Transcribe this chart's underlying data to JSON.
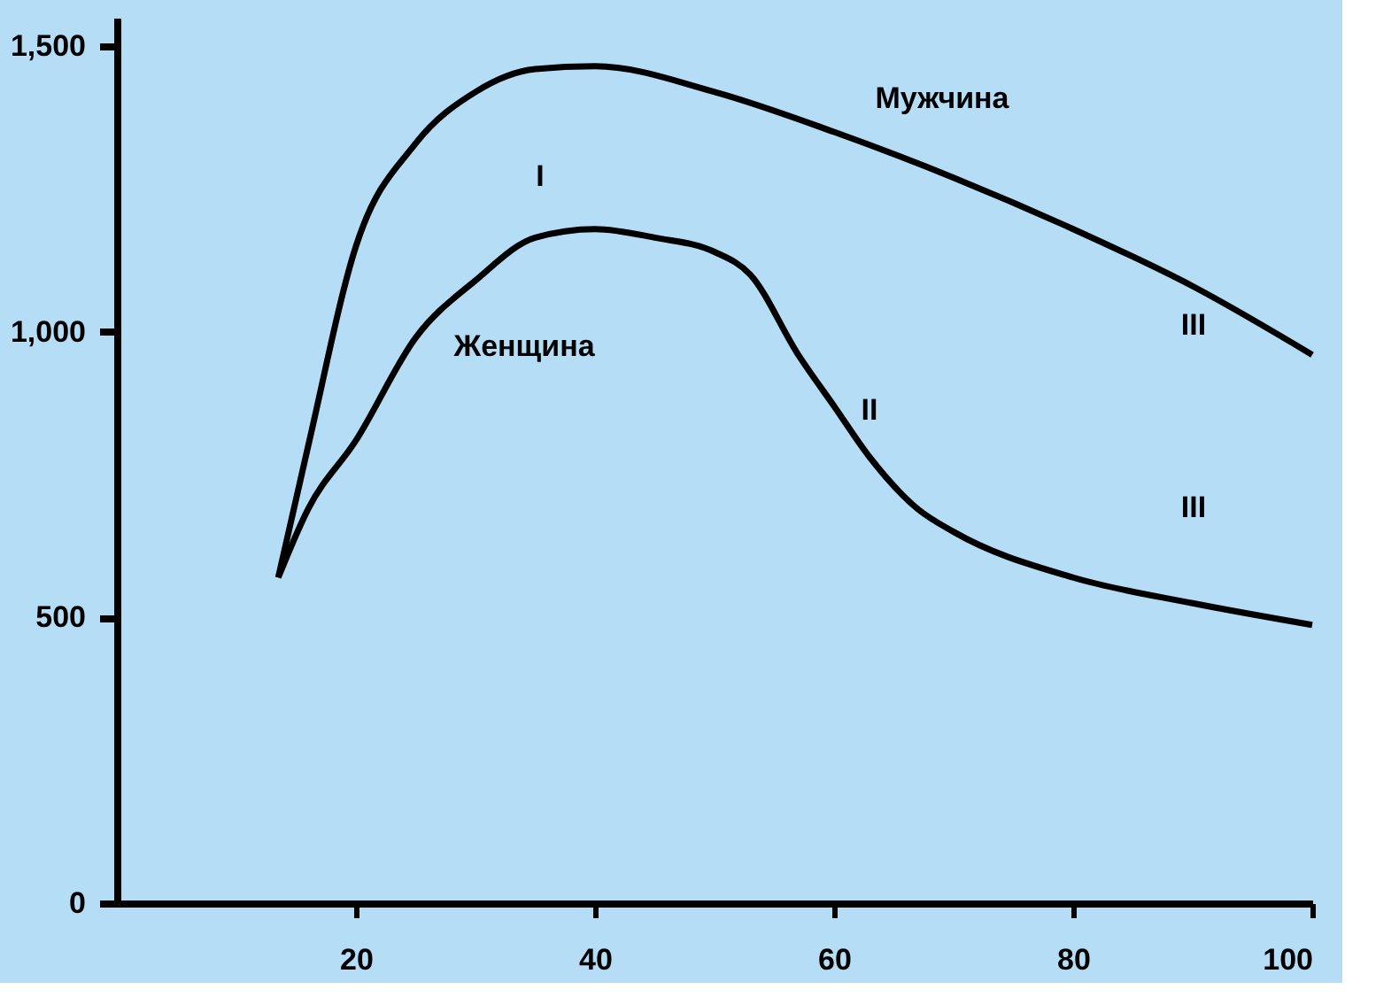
{
  "chart_data": {
    "type": "line",
    "xlim": [
      0,
      100
    ],
    "ylim": [
      0,
      1550
    ],
    "xticks": [
      20,
      40,
      60,
      80,
      100
    ],
    "yticks": [
      0,
      500,
      {
        "value": 1000,
        "label": "1,000"
      },
      {
        "value": 1500,
        "label": "1,500"
      }
    ],
    "grid": false,
    "marker": "none",
    "line_style": "solid",
    "series": [
      {
        "name": "Мужчина",
        "color": "#000000",
        "x": [
          13.5,
          16,
          20,
          25,
          30,
          35,
          40,
          50,
          60,
          70,
          80,
          90,
          100
        ],
        "values": [
          570,
          800,
          1150,
          1330,
          1420,
          1460,
          1465,
          1420,
          1350,
          1270,
          1180,
          1080,
          960
        ]
      },
      {
        "name": "Женщина",
        "color": "#000000",
        "x": [
          13.5,
          16,
          20,
          25,
          30,
          35,
          40,
          45,
          50,
          53,
          57,
          60,
          63,
          67,
          70,
          80,
          90,
          100
        ],
        "values": [
          570,
          690,
          810,
          990,
          1090,
          1165,
          1180,
          1165,
          1140,
          1100,
          960,
          870,
          780,
          690,
          650,
          570,
          525,
          487
        ]
      }
    ],
    "annotations": [
      "I",
      "II",
      "III",
      "III"
    ]
  }
}
